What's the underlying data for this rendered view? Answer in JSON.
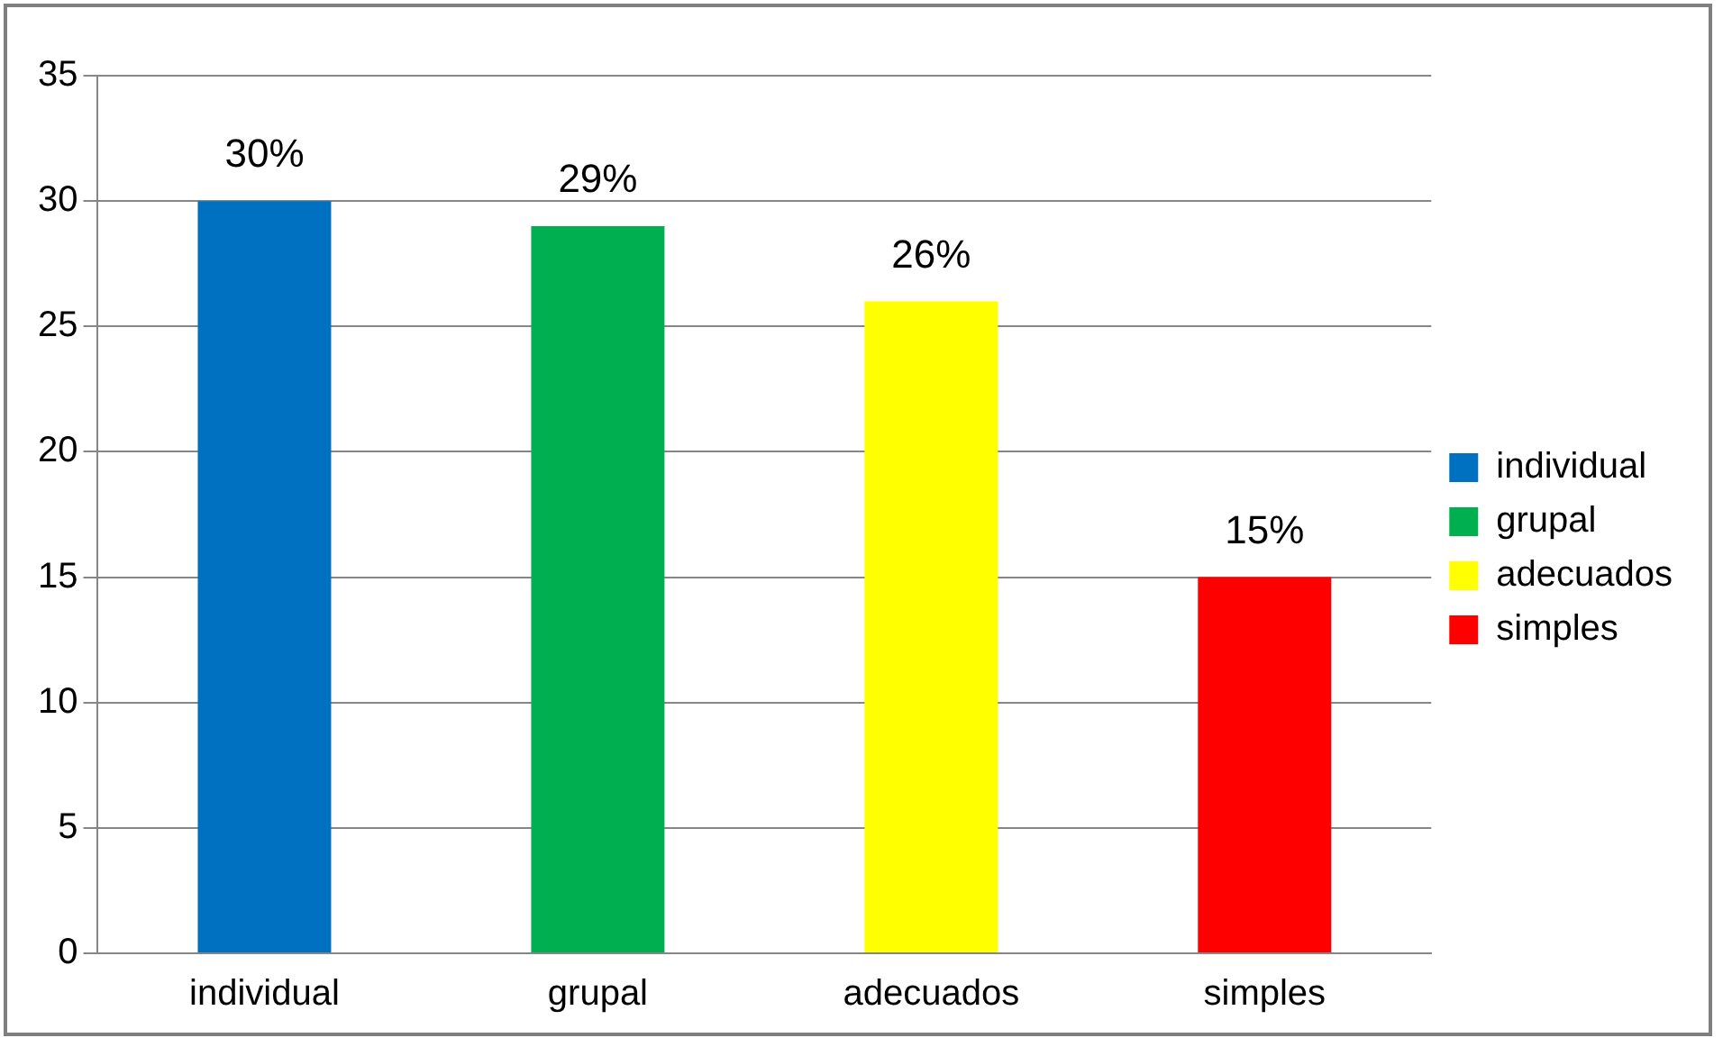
{
  "chart_data": {
    "type": "bar",
    "categories": [
      "individual",
      "grupal",
      "adecuados",
      "simples"
    ],
    "series": [
      {
        "name": "individual",
        "color": "#0070c0",
        "values": [
          30,
          null,
          null,
          null
        ],
        "value_labels": [
          "30%",
          null,
          null,
          null
        ]
      },
      {
        "name": "grupal",
        "color": "#00b050",
        "values": [
          null,
          29,
          null,
          null
        ],
        "value_labels": [
          null,
          "29%",
          null,
          null
        ]
      },
      {
        "name": "adecuados",
        "color": "#ffff00",
        "values": [
          null,
          null,
          26,
          null
        ],
        "value_labels": [
          null,
          null,
          "26%",
          null
        ]
      },
      {
        "name": "simples",
        "color": "#ff0000",
        "values": [
          null,
          null,
          null,
          15
        ],
        "value_labels": [
          null,
          null,
          null,
          "15%"
        ]
      }
    ],
    "ylim": [
      0,
      35
    ],
    "yticks": [
      0,
      5,
      10,
      15,
      20,
      25,
      30,
      35
    ],
    "grid": "y",
    "legend": "right"
  }
}
